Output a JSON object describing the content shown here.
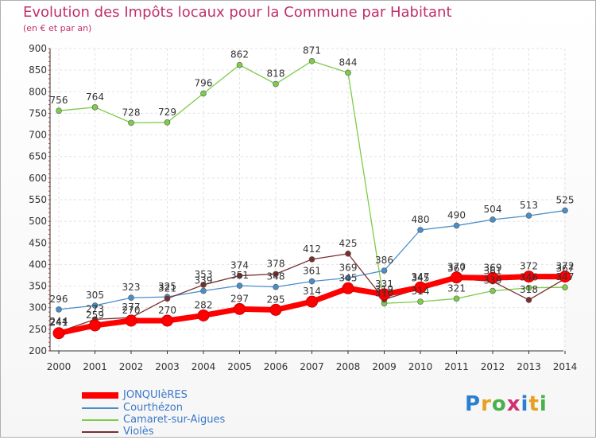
{
  "header": {
    "title": "Evolution des Impôts locaux pour la Commune par Habitant",
    "subtitle": "(en € et par an)"
  },
  "logo": {
    "text": "Proxiti"
  },
  "chart_data": {
    "type": "line",
    "title": "Evolution des Impôts locaux pour la Commune par Habitant",
    "subtitle": "(en € et par an)",
    "xlabel": "",
    "ylabel": "",
    "x": [
      "2000",
      "2001",
      "2002",
      "2003",
      "2004",
      "2005",
      "2006",
      "2007",
      "2008",
      "2009",
      "2010",
      "2011",
      "2012",
      "2013",
      "2014"
    ],
    "ylim": [
      200,
      900
    ],
    "yticks": [
      200,
      250,
      300,
      350,
      400,
      450,
      500,
      550,
      600,
      650,
      700,
      750,
      800,
      850,
      900
    ],
    "grid": true,
    "legend_position": "bottom-left",
    "series": [
      {
        "name": "JONQUIèRES",
        "color": "#ff0000",
        "values": [
          241,
          259,
          270,
          270,
          282,
          297,
          295,
          314,
          345,
          331,
          347,
          370,
          369,
          372,
          372
        ]
      },
      {
        "name": "Courthézon",
        "color": "#4a8ec8",
        "values": [
          296,
          305,
          323,
          325,
          339,
          351,
          348,
          361,
          369,
          386,
          480,
          490,
          504,
          513,
          525
        ]
      },
      {
        "name": "Camaret-sur-Aigues",
        "color": "#7dcc4a",
        "values": [
          756,
          764,
          728,
          729,
          796,
          862,
          818,
          871,
          844,
          310,
          314,
          321,
          339,
          346,
          347
        ]
      },
      {
        "name": "Violès",
        "color": "#7a2e2e",
        "values": [
          244,
          273,
          277,
          321,
          353,
          374,
          378,
          412,
          425,
          319,
          345,
          367,
          361,
          318,
          367
        ]
      }
    ]
  }
}
